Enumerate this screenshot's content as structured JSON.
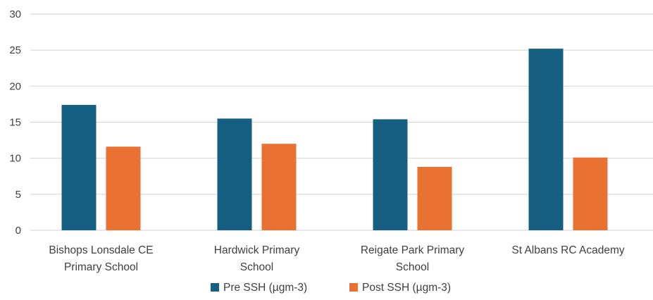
{
  "chart_data": {
    "type": "bar",
    "title": "",
    "xlabel": "",
    "ylabel": "",
    "ylim": [
      0,
      30
    ],
    "yticks": [
      0,
      5,
      10,
      15,
      20,
      25,
      30
    ],
    "grid": true,
    "legend_position": "bottom",
    "categories": [
      [
        "Bishops Lonsdale CE",
        "Primary School"
      ],
      [
        "Hardwick Primary",
        "School"
      ],
      [
        "Reigate Park Primary",
        "School"
      ],
      [
        "St Albans RC Academy"
      ]
    ],
    "series": [
      {
        "name": "Pre SSH (µgm-3)",
        "color": "#156082",
        "values": [
          17.4,
          15.5,
          15.4,
          25.2
        ]
      },
      {
        "name": "Post SSH (µgm-3)",
        "color": "#E97132",
        "values": [
          11.6,
          12.0,
          8.8,
          10.1
        ]
      }
    ]
  }
}
